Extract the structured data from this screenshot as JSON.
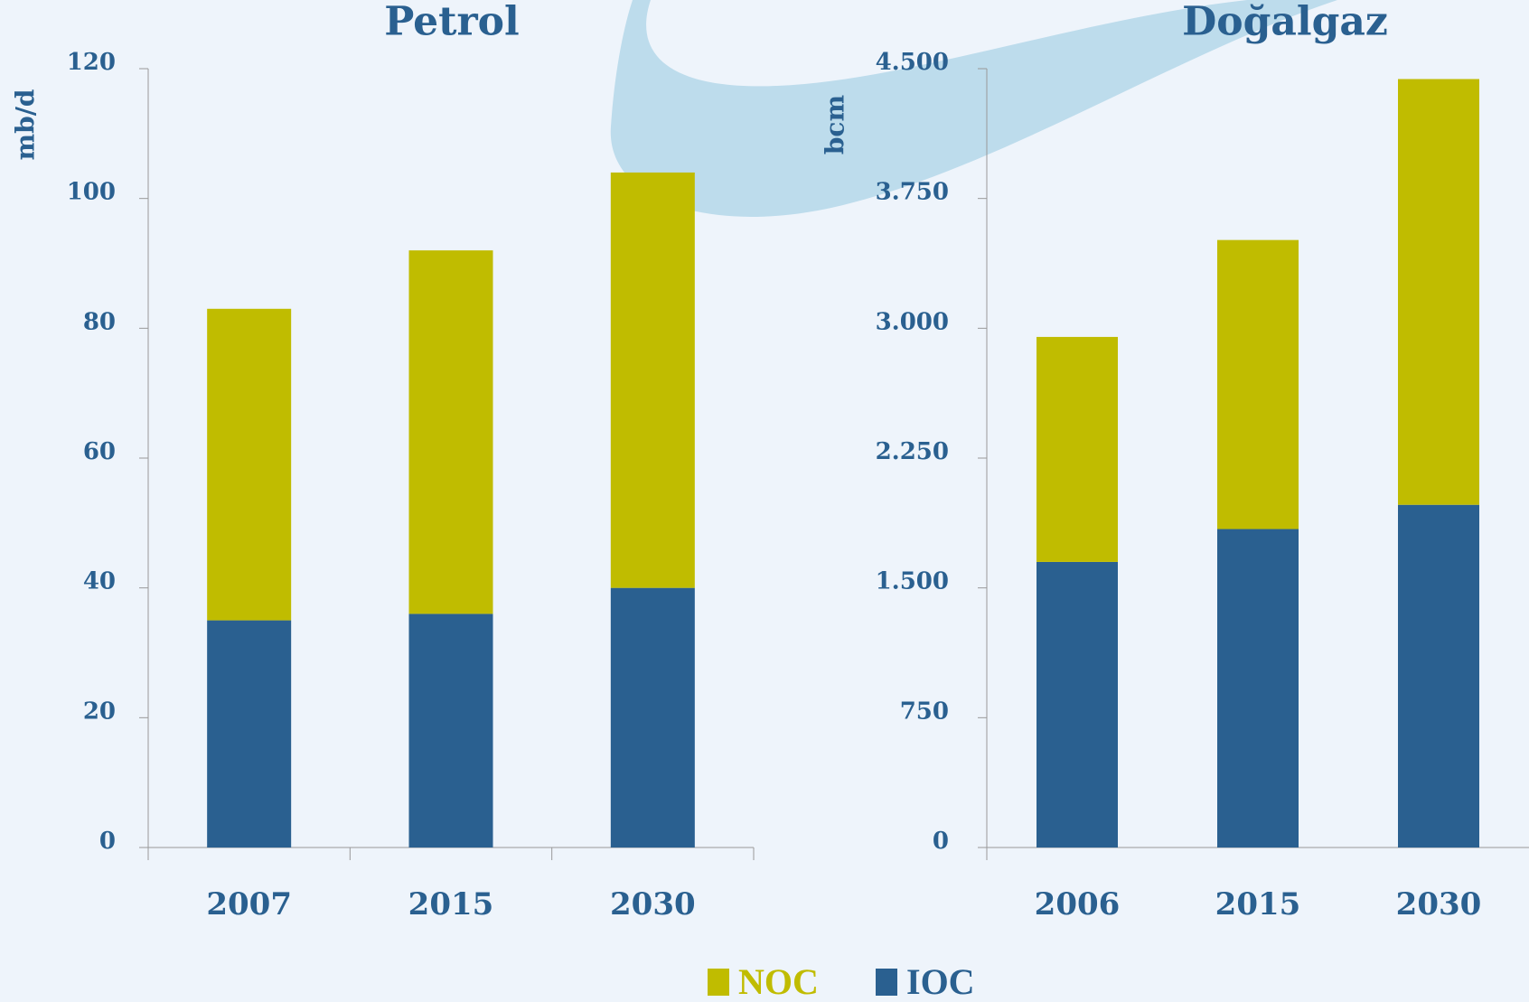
{
  "chart_data": [
    {
      "type": "bar",
      "stacked": true,
      "title": "Petrol",
      "y_label": "mb/d",
      "categories": [
        "2007",
        "2015",
        "2030"
      ],
      "series": [
        {
          "name": "IOC",
          "color": "#2a6090",
          "values": [
            35,
            36,
            40
          ]
        },
        {
          "name": "NOC",
          "color": "#c0bc00",
          "values": [
            48,
            56,
            64
          ]
        }
      ],
      "ylim": [
        0,
        120
      ],
      "yticks": [
        0,
        20,
        40,
        60,
        80,
        100,
        120
      ]
    },
    {
      "type": "bar",
      "stacked": true,
      "title": "Doğalgaz",
      "y_label": "bcm",
      "categories": [
        "2006",
        "2015",
        "2030"
      ],
      "series": [
        {
          "name": "IOC",
          "color": "#2a6090",
          "values": [
            1650,
            1840,
            1980
          ]
        },
        {
          "name": "NOC",
          "color": "#c0bc00",
          "values": [
            1300,
            1670,
            2460
          ]
        }
      ],
      "ylim": [
        0,
        4500
      ],
      "yticks": [
        0,
        750,
        {
          "value": 1500,
          "label": "1.500"
        },
        {
          "value": 2250,
          "label": "2.250"
        },
        {
          "value": 3000,
          "label": "3.000"
        },
        {
          "value": 3750,
          "label": "3.750"
        },
        {
          "value": 4500,
          "label": "4.500"
        }
      ]
    }
  ]
}
